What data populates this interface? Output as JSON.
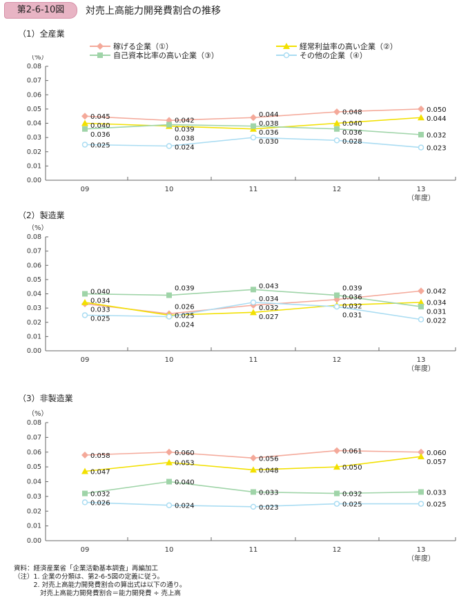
{
  "header": {
    "badge": "第2-6-10図",
    "title": "対売上高能力開発費割合の推移"
  },
  "colors": {
    "s1": "#f4a99a",
    "s2": "#f2e000",
    "s3": "#9fd4a8",
    "s4": "#a9dcf2"
  },
  "chart_data": [
    {
      "type": "line",
      "title": "（1）全産業",
      "ylabel": "（%）",
      "xlabel": "（年度）",
      "ylim": [
        0,
        0.08
      ],
      "yticks": [
        "0.00",
        "0.01",
        "0.02",
        "0.03",
        "0.04",
        "0.05",
        "0.06",
        "0.07",
        "0.08"
      ],
      "categories": [
        "09",
        "10",
        "11",
        "12",
        "13"
      ],
      "series": [
        {
          "name": "稼げる企業（①）",
          "marker": "diamond",
          "values": [
            0.045,
            0.042,
            0.044,
            0.048,
            0.05
          ],
          "labels": [
            "0.045",
            "0.042",
            "0.044",
            "0.048",
            "0.050"
          ]
        },
        {
          "name": "経常利益率の高い企業（②）",
          "marker": "triangle",
          "values": [
            0.04,
            0.038,
            0.036,
            0.04,
            0.044
          ],
          "labels": [
            "0.040",
            "0.038",
            "0.036",
            "0.040",
            "0.044"
          ]
        },
        {
          "name": "自己資本比率の高い企業（③）",
          "marker": "square",
          "values": [
            0.036,
            0.039,
            0.038,
            0.036,
            0.032
          ],
          "labels": [
            "0.036",
            "0.039",
            "0.038",
            "0.036",
            "0.032"
          ]
        },
        {
          "name": "その他の企業（④）",
          "marker": "circle",
          "values": [
            0.025,
            0.024,
            0.03,
            0.028,
            0.023
          ],
          "labels": [
            "0.025",
            "0.024",
            "0.030",
            "0.028",
            "0.023"
          ]
        }
      ]
    },
    {
      "type": "line",
      "title": "（2）製造業",
      "ylabel": "（%）",
      "xlabel": "（年度）",
      "ylim": [
        0,
        0.08
      ],
      "yticks": [
        "0.00",
        "0.01",
        "0.02",
        "0.03",
        "0.04",
        "0.05",
        "0.06",
        "0.07",
        "0.08"
      ],
      "categories": [
        "09",
        "10",
        "11",
        "12",
        "13"
      ],
      "series": [
        {
          "name": "稼げる企業（①）",
          "marker": "diamond",
          "values": [
            0.033,
            0.026,
            0.032,
            0.036,
            0.042
          ],
          "labels": [
            "0.033",
            "0.026",
            "0.032",
            "0.036",
            "0.042"
          ]
        },
        {
          "name": "経常利益率の高い企業（②）",
          "marker": "triangle",
          "values": [
            0.034,
            0.025,
            0.027,
            0.032,
            0.034
          ],
          "labels": [
            "0.034",
            "0.025",
            "0.027",
            "0.032",
            "0.034"
          ]
        },
        {
          "name": "自己資本比率の高い企業（③）",
          "marker": "square",
          "values": [
            0.04,
            0.039,
            0.043,
            0.039,
            0.031
          ],
          "labels": [
            "0.040",
            "0.039",
            "0.043",
            "0.039",
            "0.031"
          ]
        },
        {
          "name": "その他の企業（④）",
          "marker": "circle",
          "values": [
            0.025,
            0.024,
            0.034,
            0.031,
            0.022
          ],
          "labels": [
            "0.025",
            "0.024",
            "0.034",
            "0.031",
            "0.022"
          ]
        }
      ]
    },
    {
      "type": "line",
      "title": "（3）非製造業",
      "ylabel": "（%）",
      "xlabel": "（年度）",
      "ylim": [
        0,
        0.08
      ],
      "yticks": [
        "0.00",
        "0.01",
        "0.02",
        "0.03",
        "0.04",
        "0.05",
        "0.06",
        "0.07",
        "0.08"
      ],
      "categories": [
        "09",
        "10",
        "11",
        "12",
        "13"
      ],
      "series": [
        {
          "name": "稼げる企業（①）",
          "marker": "diamond",
          "values": [
            0.058,
            0.06,
            0.056,
            0.061,
            0.06
          ],
          "labels": [
            "0.058",
            "0.060",
            "0.056",
            "0.061",
            "0.060"
          ]
        },
        {
          "name": "経常利益率の高い企業（②）",
          "marker": "triangle",
          "values": [
            0.047,
            0.053,
            0.048,
            0.05,
            0.057
          ],
          "labels": [
            "0.047",
            "0.053",
            "0.048",
            "0.050",
            "0.057"
          ]
        },
        {
          "name": "自己資本比率の高い企業（③）",
          "marker": "square",
          "values": [
            0.032,
            0.04,
            0.033,
            0.032,
            0.033
          ],
          "labels": [
            "0.032",
            "0.040",
            "0.033",
            "0.032",
            "0.033"
          ]
        },
        {
          "name": "その他の企業（④）",
          "marker": "circle",
          "values": [
            0.026,
            0.024,
            0.023,
            0.025,
            0.025
          ],
          "labels": [
            "0.026",
            "0.024",
            "0.023",
            "0.025",
            "0.025"
          ]
        }
      ]
    }
  ],
  "footnotes": [
    "資料：経済産業省「企業活動基本調査」再編加工",
    "（注）1. 企業の分類は、第2-6-5図の定義に従う。",
    "　　　2. 対売上高能力開発費割合の算出式は以下の通り。",
    "　　　　対売上高能力開発費割合＝能力開発費 ÷ 売上高"
  ]
}
